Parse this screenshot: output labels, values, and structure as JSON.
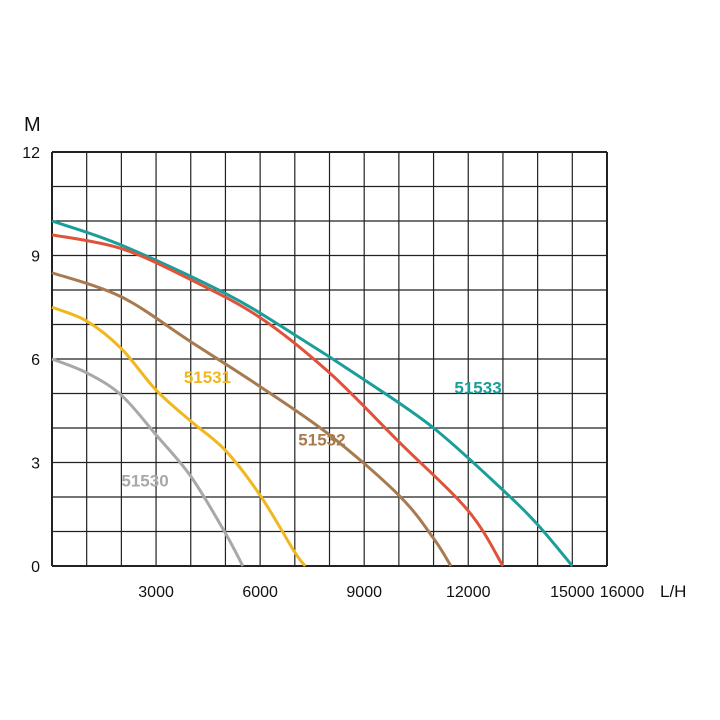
{
  "chart_data": {
    "type": "line",
    "xlabel": "L/H",
    "ylabel": "M",
    "xlim": [
      0,
      16000
    ],
    "ylim": [
      0,
      12
    ],
    "grid": true,
    "x_ticks": [
      "3000",
      "6000",
      "9000",
      "12000",
      "15000",
      "16000"
    ],
    "x_tick_values": [
      3000,
      6000,
      9000,
      12000,
      15000,
      16000
    ],
    "y_ticks": [
      "0",
      "3",
      "6",
      "9",
      "12"
    ],
    "y_tick_values": [
      0,
      3,
      6,
      9,
      12
    ],
    "series": [
      {
        "name": "51533",
        "color": "#1a9e9a",
        "labeled": true,
        "label_at": [
          11600,
          5.0
        ],
        "x": [
          0,
          2000,
          5000,
          7000,
          9000,
          11000,
          13000,
          14000,
          15000
        ],
        "y": [
          10,
          9.3,
          7.9,
          6.7,
          5.4,
          4.0,
          2.2,
          1.2,
          0
        ]
      },
      {
        "name": "",
        "color": "#e0523a",
        "labeled": false,
        "x": [
          0,
          2000,
          4000,
          6000,
          8000,
          10000,
          12000,
          13000
        ],
        "y": [
          9.6,
          9.2,
          8.3,
          7.2,
          5.6,
          3.6,
          1.6,
          0
        ]
      },
      {
        "name": "51532",
        "color": "#a87a50",
        "labeled": true,
        "label_at": [
          7100,
          3.5
        ],
        "x": [
          0,
          2000,
          4000,
          6000,
          8000,
          10000,
          11000,
          11500
        ],
        "y": [
          8.5,
          7.8,
          6.5,
          5.2,
          3.8,
          2.05,
          0.8,
          0
        ]
      },
      {
        "name": "51531",
        "color": "#f0b81e",
        "labeled": true,
        "label_at": [
          3800,
          5.3
        ],
        "x": [
          0,
          1000,
          2000,
          3000,
          4000,
          5000,
          6000,
          7000,
          7300
        ],
        "y": [
          7.5,
          7.1,
          6.3,
          5.1,
          4.2,
          3.35,
          2.05,
          0.4,
          0
        ]
      },
      {
        "name": "51530",
        "color": "#a8a8a8",
        "labeled": true,
        "label_at": [
          2000,
          2.3
        ],
        "x": [
          0,
          1000,
          2000,
          3000,
          4000,
          5000,
          5500
        ],
        "y": [
          6.0,
          5.6,
          4.95,
          3.8,
          2.6,
          0.95,
          0
        ]
      }
    ]
  }
}
